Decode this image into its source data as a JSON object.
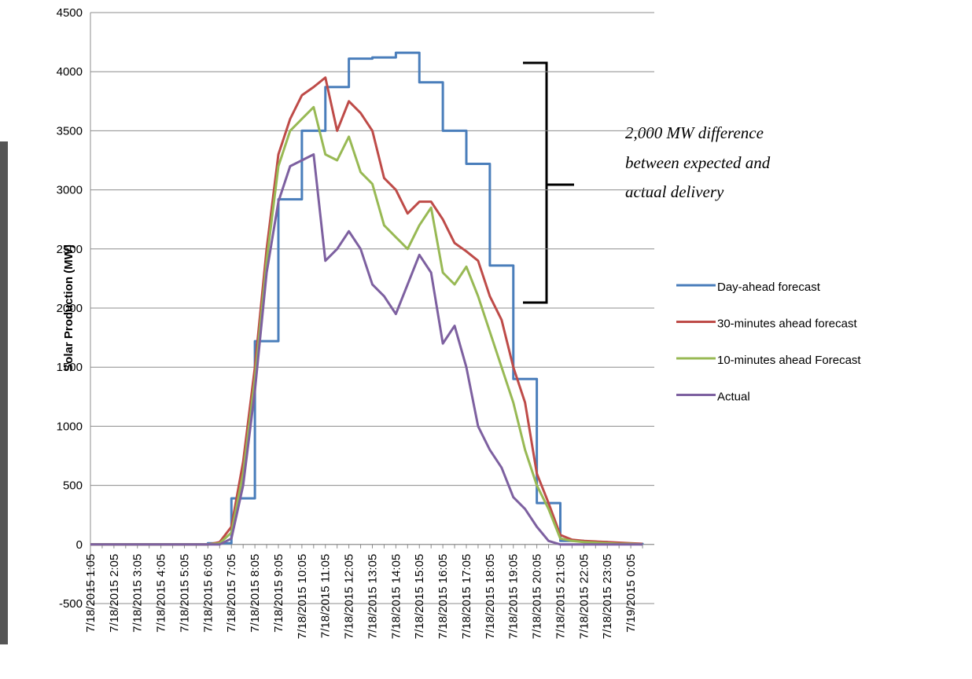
{
  "chart_data": {
    "type": "line",
    "y_label": "Solar Production (MW)",
    "annotation": [
      "2,000 MW difference",
      "between expected and",
      "actual delivery"
    ],
    "categories": [
      "7/18/2015 1:05",
      null,
      "7/18/2015 2:05",
      null,
      "7/18/2015 3:05",
      null,
      "7/18/2015 4:05",
      null,
      "7/18/2015 5:05",
      null,
      "7/18/2015 6:05",
      null,
      "7/18/2015 7:05",
      null,
      "7/18/2015 8:05",
      null,
      "7/18/2015 9:05",
      null,
      "7/18/2015 10:05",
      null,
      "7/18/2015 11:05",
      null,
      "7/18/2015 12:05",
      null,
      "7/18/2015 13:05",
      null,
      "7/18/2015 14:05",
      null,
      "7/18/2015 15:05",
      null,
      "7/18/2015 16:05",
      null,
      "7/18/2015 17:05",
      null,
      "7/18/2015 18:05",
      null,
      "7/18/2015 19:05",
      null,
      "7/18/2015 20:05",
      null,
      "7/18/2015 21:05",
      null,
      "7/18/2015 22:05",
      null,
      "7/18/2015 23:05",
      null,
      "7/19/2015 0:05",
      null
    ],
    "series": [
      {
        "name": "Day-ahead forecast",
        "color": "#4a7ebb",
        "step": true,
        "values": [
          0,
          0,
          0,
          0,
          0,
          0,
          0,
          0,
          0,
          0,
          10,
          10,
          390,
          390,
          1720,
          1720,
          2920,
          2920,
          3500,
          3500,
          3870,
          3870,
          4110,
          4110,
          4120,
          4120,
          4160,
          4160,
          3910,
          3910,
          3500,
          3500,
          3220,
          3220,
          2360,
          2360,
          1400,
          1400,
          350,
          350,
          30,
          30,
          20,
          20,
          10,
          5,
          5,
          0
        ]
      },
      {
        "name": "30-minutes ahead forecast",
        "color": "#be4b48",
        "values": [
          0,
          0,
          0,
          0,
          0,
          0,
          0,
          0,
          0,
          0,
          0,
          20,
          150,
          700,
          1500,
          2500,
          3300,
          3600,
          3800,
          3870,
          3950,
          3500,
          3750,
          3650,
          3500,
          3100,
          3000,
          2800,
          2900,
          2900,
          2750,
          2550,
          2480,
          2400,
          2100,
          1900,
          1500,
          1200,
          600,
          350,
          80,
          40,
          30,
          25,
          20,
          15,
          10,
          5
        ]
      },
      {
        "name": "10-minutes ahead Forecast",
        "color": "#98b954",
        "values": [
          0,
          0,
          0,
          0,
          0,
          0,
          0,
          0,
          0,
          0,
          0,
          10,
          100,
          600,
          1400,
          2400,
          3200,
          3500,
          3600,
          3700,
          3300,
          3250,
          3450,
          3150,
          3050,
          2700,
          2600,
          2500,
          2700,
          2850,
          2300,
          2200,
          2350,
          2100,
          1800,
          1500,
          1200,
          800,
          500,
          300,
          50,
          30,
          20,
          15,
          10,
          5,
          5,
          0
        ]
      },
      {
        "name": "Actual",
        "color": "#7d60a0",
        "values": [
          0,
          0,
          0,
          0,
          0,
          0,
          0,
          0,
          0,
          0,
          0,
          0,
          50,
          500,
          1300,
          2300,
          2900,
          3200,
          3250,
          3300,
          2400,
          2500,
          2650,
          2500,
          2200,
          2100,
          1950,
          2200,
          2450,
          2300,
          1700,
          1850,
          1500,
          1000,
          800,
          650,
          400,
          300,
          150,
          30,
          0,
          0,
          0,
          0,
          0,
          0,
          0,
          0
        ]
      }
    ],
    "ylim": [
      -500,
      4500
    ],
    "yticks": [
      -500,
      0,
      500,
      1000,
      1500,
      2000,
      2500,
      3000,
      3500,
      4000,
      4500
    ],
    "grid": true,
    "legend": "right"
  }
}
